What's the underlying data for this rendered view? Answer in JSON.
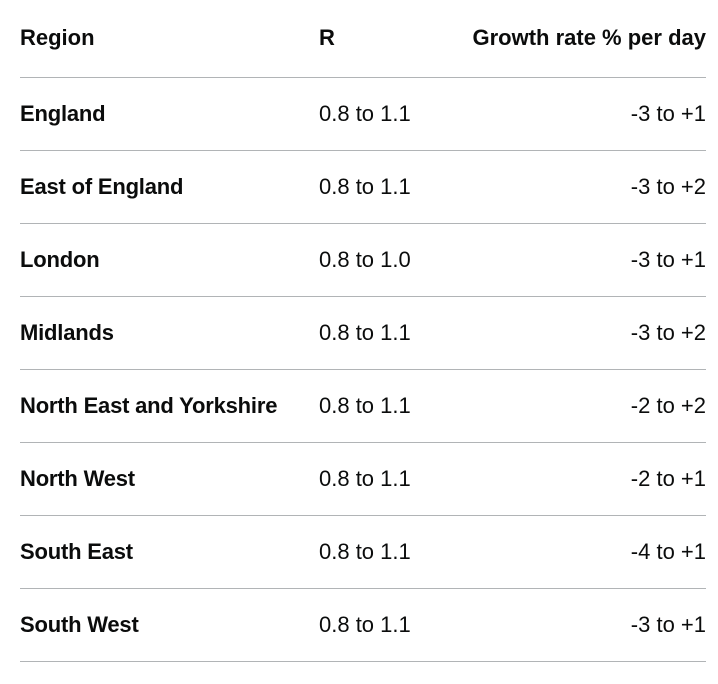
{
  "table": {
    "headers": {
      "region": "Region",
      "r": "R",
      "growth": "Growth rate % per day"
    },
    "rows": [
      {
        "region": "England",
        "r": "0.8 to 1.1",
        "growth": "-3 to +1"
      },
      {
        "region": "East of England",
        "r": "0.8 to 1.1",
        "growth": "-3 to +2"
      },
      {
        "region": "London",
        "r": "0.8 to 1.0",
        "growth": "-3 to +1"
      },
      {
        "region": "Midlands",
        "r": "0.8 to 1.1",
        "growth": "-3 to +2"
      },
      {
        "region": "North East and Yorkshire",
        "r": "0.8 to 1.1",
        "growth": "-2 to +2"
      },
      {
        "region": "North West",
        "r": "0.8 to 1.1",
        "growth": "-2 to +1"
      },
      {
        "region": "South East",
        "r": "0.8 to 1.1",
        "growth": "-4 to +1"
      },
      {
        "region": "South West",
        "r": "0.8 to 1.1",
        "growth": "-3 to +1"
      }
    ]
  }
}
